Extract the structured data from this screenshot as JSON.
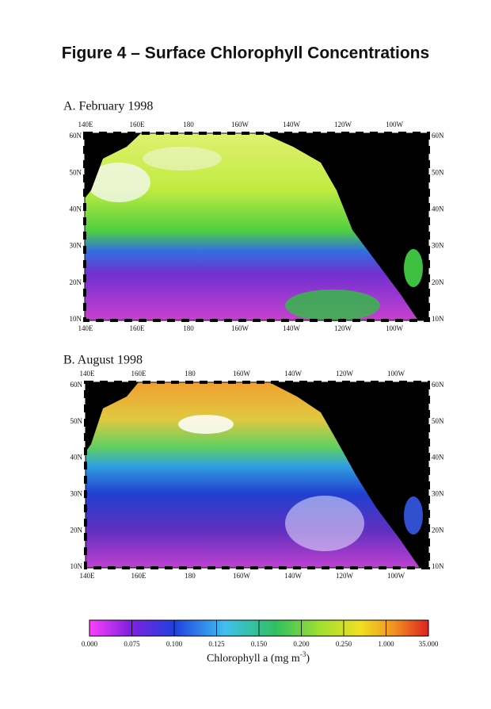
{
  "title": "Figure 4 – Surface Chlorophyll Concentrations",
  "panels": [
    {
      "label": "A. February 1998",
      "lon_labels": [
        "140E",
        "160E",
        "180",
        "160W",
        "140W",
        "120W",
        "100W"
      ],
      "lat_labels": [
        "60N",
        "50N",
        "40N",
        "30N",
        "20N",
        "10N"
      ]
    },
    {
      "label": "B. August 1998",
      "lon_labels": [
        "140E",
        "160E",
        "180",
        "160W",
        "140W",
        "120W",
        "100W"
      ],
      "lat_labels": [
        "60N",
        "50N",
        "40N",
        "30N",
        "20N",
        "10N"
      ]
    }
  ],
  "colorbar": {
    "ticks": [
      "0.000",
      "0.075",
      "0.100",
      "0.125",
      "0.150",
      "0.200",
      "0.250",
      "1.000",
      "35.000"
    ],
    "label": "Chlorophyll a (mg m",
    "label_sup": "-3",
    "label_end": ")"
  }
}
